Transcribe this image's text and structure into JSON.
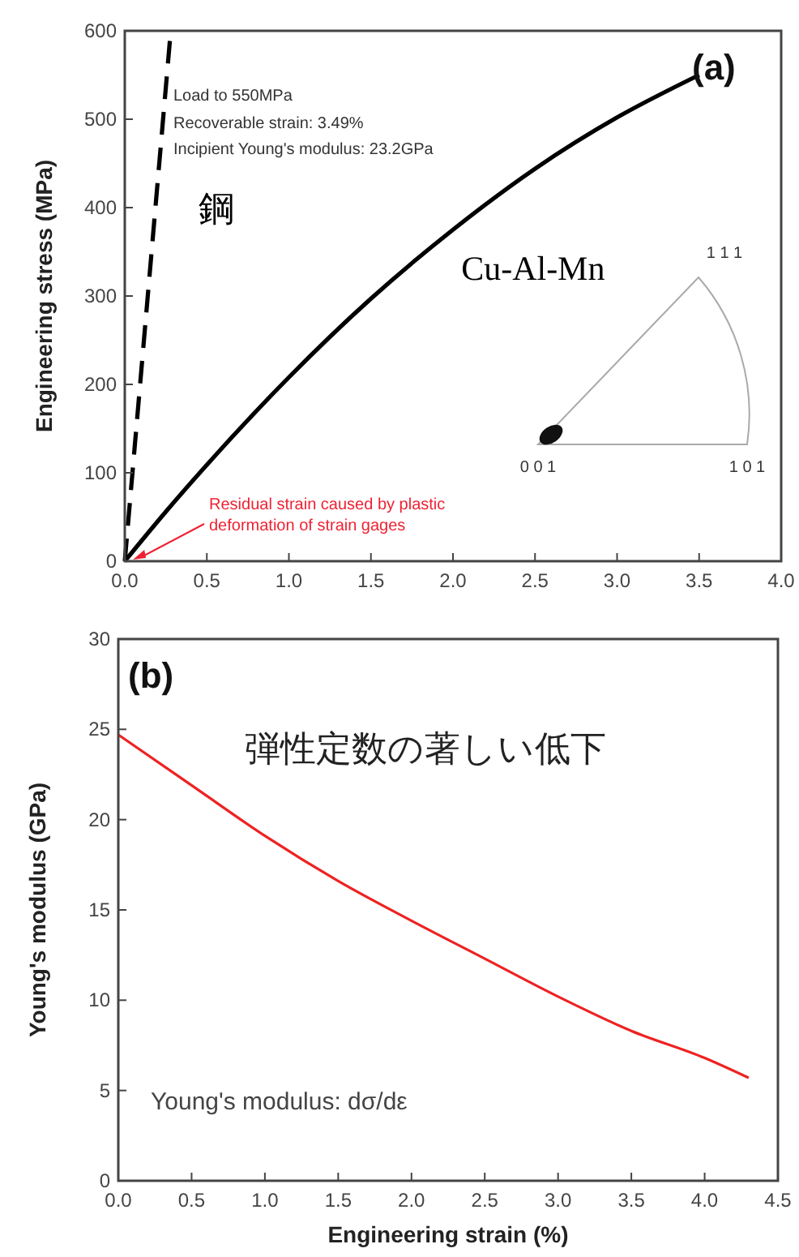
{
  "chart_data": [
    {
      "type": "line",
      "xlim": [
        0,
        4
      ],
      "ylim": [
        0,
        600
      ],
      "xticks": [
        {
          "value": 0,
          "label": "0.0"
        },
        {
          "value": 0.5,
          "label": "0.5"
        },
        {
          "value": 1,
          "label": "1.0"
        },
        {
          "value": 1.5,
          "label": "1.5"
        },
        {
          "value": 2,
          "label": "2.0"
        },
        {
          "value": 2.5,
          "label": "2.5"
        },
        {
          "value": 3,
          "label": "3.0"
        },
        {
          "value": 3.5,
          "label": "3.5"
        },
        {
          "value": 4,
          "label": "4.0"
        }
      ],
      "yticks": [
        0,
        100,
        200,
        300,
        400,
        500,
        600
      ],
      "ylabel": "Engineering stress (MPa)",
      "grid": false,
      "series": [
        {
          "name": "鋼",
          "color": "#000000",
          "line_style": "dashed",
          "x": [
            0,
            0.28
          ],
          "values": [
            0,
            600
          ]
        },
        {
          "name": "Cu-Al-Mn",
          "color": "#000000",
          "line_style": "solid",
          "x": [
            0,
            0.25,
            0.5,
            1,
            1.5,
            2,
            2.5,
            3,
            3.5
          ],
          "values": [
            0,
            56,
            109,
            208,
            297,
            375,
            444,
            502,
            550
          ]
        }
      ],
      "annotations": [
        "(a)",
        "Load to 550MPa",
        "Recoverable strain: 3.49%",
        "Incipient Young's modulus: 23.2GPa",
        {
          "text": "Residual strain caused by plastic deformation of strain gages",
          "x": 0.05,
          "y": 0
        },
        "1 1 1",
        "0 0 1",
        "1 0 1"
      ]
    },
    {
      "type": "line",
      "xlim": [
        0,
        4.5
      ],
      "ylim": [
        0,
        30
      ],
      "xticks": [
        {
          "value": 0,
          "label": "0.0"
        },
        {
          "value": 0.5,
          "label": "0.5"
        },
        {
          "value": 1,
          "label": "1.0"
        },
        {
          "value": 1.5,
          "label": "1.5"
        },
        {
          "value": 2,
          "label": "2.0"
        },
        {
          "value": 2.5,
          "label": "2.5"
        },
        {
          "value": 3,
          "label": "3.0"
        },
        {
          "value": 3.5,
          "label": "3.5"
        },
        {
          "value": 4,
          "label": "4.0"
        },
        {
          "value": 4.5,
          "label": "4.5"
        }
      ],
      "yticks": [
        0,
        5,
        10,
        15,
        20,
        25,
        30
      ],
      "xlabel": "Engineering strain (%)",
      "ylabel": "Young's modulus (GPa)",
      "grid": false,
      "series": [
        {
          "color": "#ee2222",
          "line_style": "solid",
          "x": [
            0,
            0.5,
            1,
            1.5,
            2,
            2.5,
            3,
            3.5,
            4,
            4.3
          ],
          "values": [
            24.7,
            21.9,
            19.1,
            16.6,
            14.4,
            12.3,
            10.2,
            8.3,
            6.8,
            5.7
          ]
        }
      ],
      "annotations": [
        "(b)",
        "弾性定数の著しい低下",
        "Young's modulus: dσ/dε"
      ]
    }
  ]
}
